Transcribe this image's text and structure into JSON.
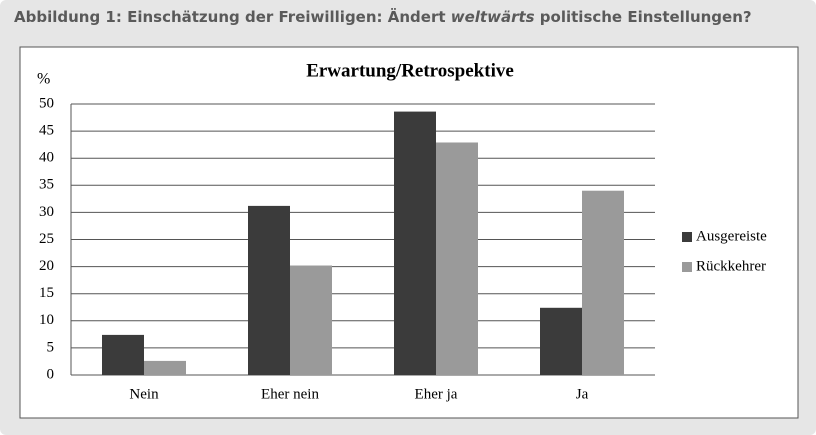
{
  "caption": {
    "before": "Abbildung 1: Einschätzung der Freiwilligen: Ändert ",
    "italic": "weltwärts",
    "after": " politische Einstellungen?"
  },
  "chart_data": {
    "type": "bar",
    "title": "Erwartung/Retrospektive",
    "y_label": "%",
    "categories": [
      "Nein",
      "Eher nein",
      "Eher ja",
      "Ja"
    ],
    "series": [
      {
        "name": "Ausgereiste",
        "color": "#3b3b3b",
        "values": [
          7.4,
          31.2,
          48.6,
          12.4
        ]
      },
      {
        "name": "Rückkehrer",
        "color": "#9a9a9a",
        "values": [
          2.6,
          20.2,
          42.9,
          34.0
        ]
      }
    ],
    "ylim": [
      0,
      50
    ],
    "yticks": [
      0,
      5,
      10,
      15,
      20,
      25,
      30,
      35,
      40,
      45,
      50
    ],
    "grid": true,
    "legend": "right"
  }
}
